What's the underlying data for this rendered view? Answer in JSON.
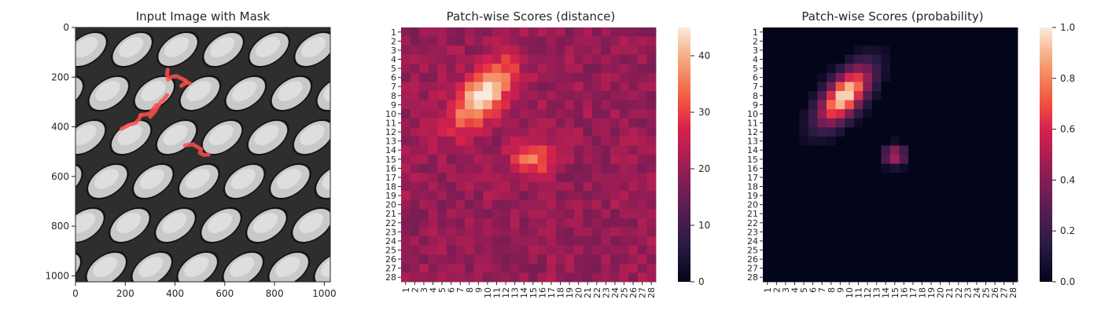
{
  "chart_data": [
    {
      "type": "image",
      "title": "Input Image with Mask",
      "xlim": [
        0,
        1024
      ],
      "ylim": [
        1024,
        0
      ],
      "x_ticks": [
        0,
        200,
        400,
        600,
        800,
        1000
      ],
      "y_ticks": [
        0,
        200,
        400,
        600,
        800,
        1000
      ],
      "mask_color": "#ff4d4d",
      "mask_strokes": [
        [
          [
            185,
            408
          ],
          [
            215,
            392
          ],
          [
            240,
            385
          ],
          [
            255,
            370
          ],
          [
            262,
            352
          ]
        ],
        [
          [
            265,
            352
          ],
          [
            285,
            350
          ],
          [
            300,
            345
          ],
          [
            312,
            328
          ],
          [
            325,
            312
          ]
        ],
        [
          [
            300,
            360
          ],
          [
            318,
            340
          ],
          [
            330,
            320
          ],
          [
            342,
            300
          ],
          [
            355,
            290
          ],
          [
            368,
            272
          ]
        ],
        [
          [
            370,
            170
          ],
          [
            368,
            190
          ],
          [
            372,
            210
          ],
          [
            385,
            200
          ],
          [
            405,
            195
          ],
          [
            425,
            205
          ],
          [
            445,
            215
          ]
        ],
        [
          [
            425,
            235
          ],
          [
            445,
            222
          ],
          [
            460,
            225
          ]
        ],
        [
          [
            440,
            475
          ],
          [
            470,
            470
          ],
          [
            488,
            480
          ],
          [
            505,
            490
          ],
          [
            500,
            505
          ],
          [
            515,
            513
          ],
          [
            535,
            512
          ]
        ]
      ]
    },
    {
      "type": "heatmap",
      "title": "Patch-wise Scores (distance)",
      "rows": 28,
      "cols": 28,
      "x_tick_labels": [
        "1",
        "2",
        "3",
        "4",
        "5",
        "6",
        "7",
        "8",
        "9",
        "10",
        "11",
        "12",
        "13",
        "14",
        "15",
        "16",
        "17",
        "18",
        "19",
        "20",
        "21",
        "22",
        "23",
        "24",
        "25",
        "26",
        "27",
        "28"
      ],
      "y_tick_labels": [
        "1",
        "2",
        "3",
        "4",
        "5",
        "6",
        "7",
        "8",
        "9",
        "10",
        "11",
        "12",
        "13",
        "14",
        "15",
        "16",
        "17",
        "18",
        "19",
        "20",
        "21",
        "22",
        "23",
        "24",
        "25",
        "26",
        "27",
        "28"
      ],
      "vmin": 0,
      "vmax": 45,
      "colorbar_ticks": [
        0,
        10,
        20,
        30,
        40
      ],
      "background": 20,
      "hotspots": [
        {
          "cx": 9.5,
          "cy": 8.0,
          "rx": 4.2,
          "ry": 2.1,
          "angle": -50,
          "peak": 45
        },
        {
          "cx": 15.0,
          "cy": 14.8,
          "rx": 2.0,
          "ry": 1.6,
          "angle": 0,
          "peak": 36
        }
      ]
    },
    {
      "type": "heatmap",
      "title": "Patch-wise Scores (probability)",
      "rows": 28,
      "cols": 28,
      "x_tick_labels": [
        "1",
        "2",
        "3",
        "4",
        "5",
        "6",
        "7",
        "8",
        "9",
        "10",
        "11",
        "12",
        "13",
        "14",
        "15",
        "16",
        "17",
        "18",
        "19",
        "20",
        "21",
        "22",
        "23",
        "24",
        "25",
        "26",
        "27",
        "28"
      ],
      "y_tick_labels": [
        "1",
        "2",
        "3",
        "4",
        "5",
        "6",
        "7",
        "8",
        "9",
        "10",
        "11",
        "12",
        "13",
        "14",
        "15",
        "16",
        "17",
        "18",
        "19",
        "20",
        "21",
        "22",
        "23",
        "24",
        "25",
        "26",
        "27",
        "28"
      ],
      "vmin": 0,
      "vmax": 1,
      "colorbar_ticks": [
        0.0,
        0.2,
        0.4,
        0.6,
        0.8,
        1.0
      ],
      "colorbar_tick_labels": [
        "0.0",
        "0.2",
        "0.4",
        "0.6",
        "0.8",
        "1.0"
      ],
      "background": 0,
      "hotspots": [
        {
          "cx": 9.5,
          "cy": 8.0,
          "rx": 3.6,
          "ry": 1.7,
          "angle": -50,
          "peak": 1.0
        },
        {
          "cx": 15.0,
          "cy": 14.6,
          "rx": 1.2,
          "ry": 1.0,
          "angle": 0,
          "peak": 0.55
        }
      ]
    }
  ]
}
